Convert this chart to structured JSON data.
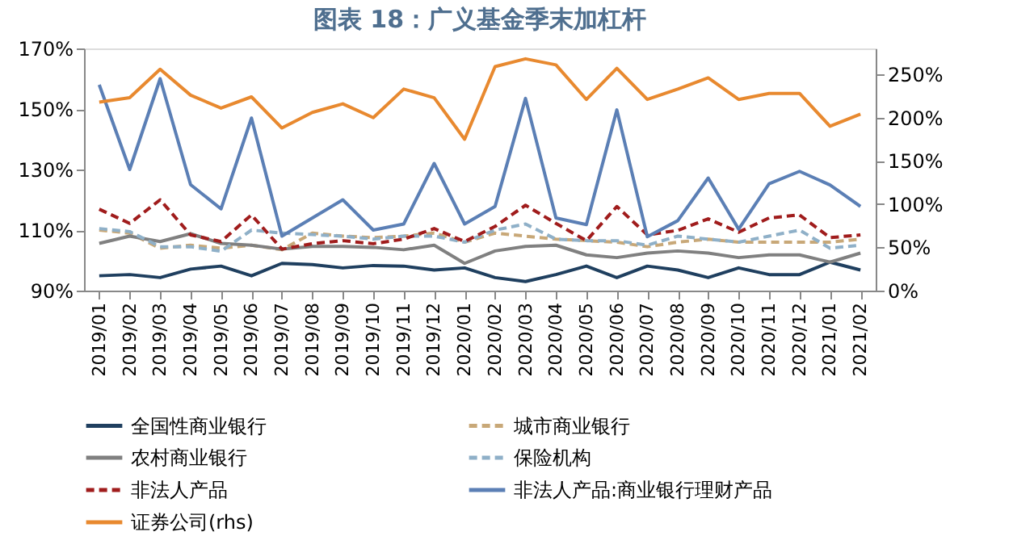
{
  "chart_data": {
    "type": "line",
    "title": "图表 18：广义基金季末加杠杆",
    "categories": [
      "2019/01",
      "2019/02",
      "2019/03",
      "2019/04",
      "2019/05",
      "2019/06",
      "2019/07",
      "2019/08",
      "2019/09",
      "2019/10",
      "2019/11",
      "2019/12",
      "2020/01",
      "2020/02",
      "2020/03",
      "2020/04",
      "2020/05",
      "2020/06",
      "2020/07",
      "2020/08",
      "2020/09",
      "2020/10",
      "2020/11",
      "2020/12",
      "2021/01",
      "2021/02"
    ],
    "series": [
      {
        "name": "全国性商业银行",
        "color": "#1f3f5f",
        "line_style": "solid",
        "values": [
          94.9,
          95.3,
          94.3,
          97.1,
          98.1,
          94.9,
          99,
          98.6,
          97.5,
          98.3,
          98.1,
          96.8,
          97.5,
          94.3,
          93,
          95.3,
          98.1,
          94.3,
          98.1,
          96.8,
          94.3,
          97.5,
          95.3,
          95.3,
          99.4,
          96.8
        ]
      },
      {
        "name": "城市商业银行",
        "color": "#c8a878",
        "line_style": "dashed",
        "values": [
          110,
          109,
          104,
          105,
          104,
          105,
          103.5,
          109,
          108,
          107.5,
          108,
          109,
          106,
          109,
          108,
          107,
          106.5,
          106,
          104.5,
          106,
          107,
          106,
          106,
          106,
          106,
          107
        ]
      },
      {
        "name": "农村商业银行",
        "color": "#808080",
        "line_style": "solid",
        "values": [
          105.6,
          108,
          106.2,
          108.8,
          105.6,
          105,
          103.7,
          104.6,
          104.6,
          104.3,
          103.5,
          105,
          99,
          103.1,
          104.6,
          105,
          101.8,
          100.9,
          102.4,
          103.1,
          102.4,
          100.9,
          101.8,
          101.8,
          99.4,
          102.4
        ]
      },
      {
        "name": "保险机构",
        "color": "#8fb0c8",
        "line_style": "dashed",
        "values": [
          110.5,
          109.5,
          104.5,
          104.5,
          103,
          110,
          109,
          108.5,
          108,
          107,
          108,
          108,
          106,
          110,
          112,
          107,
          106.5,
          106.5,
          105,
          108,
          107,
          106,
          108,
          110,
          104,
          105
        ]
      },
      {
        "name": "非法人产品",
        "color": "#a01c1c",
        "line_style": "dashed",
        "values": [
          116.9,
          112.2,
          120,
          108.4,
          106.2,
          115,
          103.7,
          105.5,
          106.5,
          105.5,
          107,
          110.5,
          106.2,
          111.2,
          118.2,
          112.2,
          106.5,
          117.8,
          108.4,
          109.9,
          113.7,
          109.3,
          114,
          115,
          107.5,
          108.4
        ]
      },
      {
        "name": "非法人产品:商业银行理财产品",
        "color": "#5b7fb5",
        "line_style": "solid",
        "values": [
          158,
          130,
          160,
          125,
          117,
          147,
          108,
          114,
          120,
          110,
          112,
          132,
          112,
          117.8,
          153.5,
          114,
          111.8,
          149.7,
          107.8,
          113.1,
          127.2,
          110.3,
          125.3,
          129.4,
          124.9,
          117.8
        ]
      },
      {
        "name": "证券公司(rhs)",
        "color": "#e8892f",
        "line_style": "solid",
        "axis": "y2",
        "values": [
          218,
          223,
          256,
          226,
          211,
          224,
          188,
          206,
          216,
          200,
          233,
          223,
          175,
          259,
          268,
          261,
          221,
          257,
          221,
          233,
          246,
          221,
          228,
          228,
          190,
          204
        ]
      }
    ],
    "ylim": [
      90,
      170
    ],
    "yticks": [
      {
        "value": 90,
        "label": "90%"
      },
      {
        "value": 110,
        "label": "110%"
      },
      {
        "value": 130,
        "label": "130%"
      },
      {
        "value": 150,
        "label": "150%"
      },
      {
        "value": 170,
        "label": "170%"
      }
    ],
    "y2lim": [
      0,
      280
    ],
    "y2ticks": [
      {
        "value": 0,
        "label": "0%"
      },
      {
        "value": 50,
        "label": "50%"
      },
      {
        "value": 100,
        "label": "100%"
      },
      {
        "value": 150,
        "label": "150%"
      },
      {
        "value": 200,
        "label": "200%"
      },
      {
        "value": 250,
        "label": "250%"
      }
    ],
    "grid": false,
    "legend": "bottom"
  }
}
